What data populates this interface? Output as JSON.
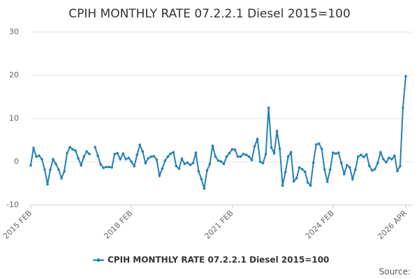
{
  "chart_data": {
    "type": "line",
    "title": "CPIH MONTHLY RATE 07.2.2.1 Diesel 2015=100",
    "categories": [
      "2015 FEB",
      null,
      null,
      null,
      null,
      null,
      null,
      null,
      null,
      null,
      null,
      null,
      null,
      null,
      null,
      null,
      null,
      null,
      null,
      null,
      null,
      null,
      null,
      null,
      null,
      null,
      null,
      null,
      null,
      null,
      null,
      null,
      null,
      null,
      null,
      null,
      "2018 FEB",
      null,
      null,
      null,
      null,
      null,
      null,
      null,
      null,
      null,
      null,
      null,
      null,
      null,
      null,
      null,
      null,
      null,
      null,
      null,
      null,
      null,
      null,
      null,
      null,
      null,
      null,
      null,
      null,
      null,
      null,
      null,
      null,
      null,
      null,
      null,
      "2021 FEB",
      null,
      null,
      null,
      null,
      null,
      null,
      null,
      null,
      null,
      null,
      null,
      null,
      null,
      null,
      null,
      null,
      null,
      null,
      null,
      null,
      null,
      null,
      null,
      null,
      null,
      null,
      null,
      null,
      null,
      null,
      null,
      null,
      null,
      null,
      null,
      "2024 FEB",
      null,
      null,
      null,
      null,
      null,
      null,
      null,
      null,
      null,
      null,
      null,
      null,
      null,
      null,
      null,
      null,
      null,
      null,
      null,
      null,
      null,
      null,
      null,
      null,
      null,
      "2026 APR"
    ],
    "series": [
      {
        "name": "CPIH MONTHLY RATE 07.2.2.1 Diesel 2015=100",
        "color": "#2480b4",
        "values": [
          -0.8,
          3.2,
          1.2,
          1.4,
          0.6,
          -1.8,
          -5.2,
          -1.8,
          0.6,
          -0.5,
          -1.8,
          -3.8,
          -2.2,
          2.0,
          3.4,
          2.9,
          2.6,
          0.8,
          -0.8,
          1.2,
          2.4,
          1.8,
          null,
          3.4,
          1.4,
          -0.6,
          -1.4,
          -1.2,
          -1.2,
          -1.3,
          1.8,
          2.0,
          0.6,
          1.9,
          0.6,
          0.9,
          0.0,
          -1.0,
          1.6,
          3.9,
          2.4,
          -0.3,
          0.8,
          1.2,
          1.3,
          0.5,
          -3.2,
          -1.6,
          0.3,
          1.2,
          1.9,
          2.2,
          -1.0,
          -1.6,
          0.7,
          -0.5,
          -0.2,
          -0.7,
          -0.3,
          2.1,
          -2.2,
          -4.0,
          -6.2,
          -2.0,
          -0.5,
          3.7,
          1.2,
          0.3,
          0.1,
          -0.5,
          1.2,
          2.0,
          2.9,
          2.8,
          1.2,
          1.2,
          1.8,
          1.6,
          1.2,
          0.4,
          3.6,
          5.3,
          0.0,
          -0.3,
          1.8,
          12.5,
          3.3,
          2.0,
          7.1,
          3.0,
          -5.5,
          -2.4,
          1.2,
          2.2,
          -4.5,
          -3.8,
          -1.3,
          -1.7,
          -2.3,
          -4.8,
          -5.5,
          -0.2,
          4.0,
          4.2,
          3.0,
          -1.8,
          -4.6,
          -1.8,
          2.1,
          1.9,
          2.1,
          -0.3,
          -2.8,
          -0.8,
          -1.3,
          -4.0,
          -1.8,
          1.2,
          1.6,
          1.1,
          1.7,
          -0.9,
          -2.0,
          -1.7,
          -0.3,
          2.2,
          0.6,
          -0.1,
          0.9,
          0.6,
          1.4,
          -2.1,
          -1.0,
          12.5,
          19.8
        ]
      }
    ],
    "ylim": [
      -10,
      30
    ],
    "yticks": [
      -10,
      0,
      10,
      20,
      30
    ],
    "grid": true,
    "source": "Source:"
  }
}
